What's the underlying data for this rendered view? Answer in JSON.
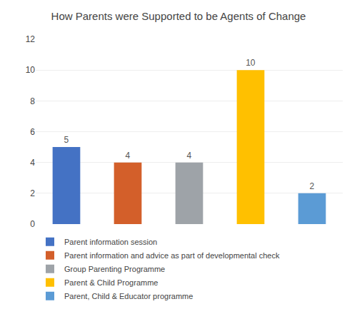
{
  "chart_data": {
    "type": "bar",
    "title": "How Parents were Supported to be Agents of Change",
    "categories": [
      "Parent information session",
      "Parent information and advice as part of developmental check",
      "Group Parenting Programme",
      "Parent & Child Programme",
      "Parent, Child & Educator programme"
    ],
    "values": [
      5,
      4,
      4,
      10,
      2
    ],
    "colors": [
      "#4472C4",
      "#D35F2A",
      "#9EA3A8",
      "#FFC000",
      "#5B9BD5"
    ],
    "ylim": [
      0,
      12
    ],
    "yticks": [
      0,
      2,
      4,
      6,
      8,
      10,
      12
    ],
    "grid": true,
    "legend": "bottom",
    "data_labels": true,
    "tick_labels": "y"
  }
}
